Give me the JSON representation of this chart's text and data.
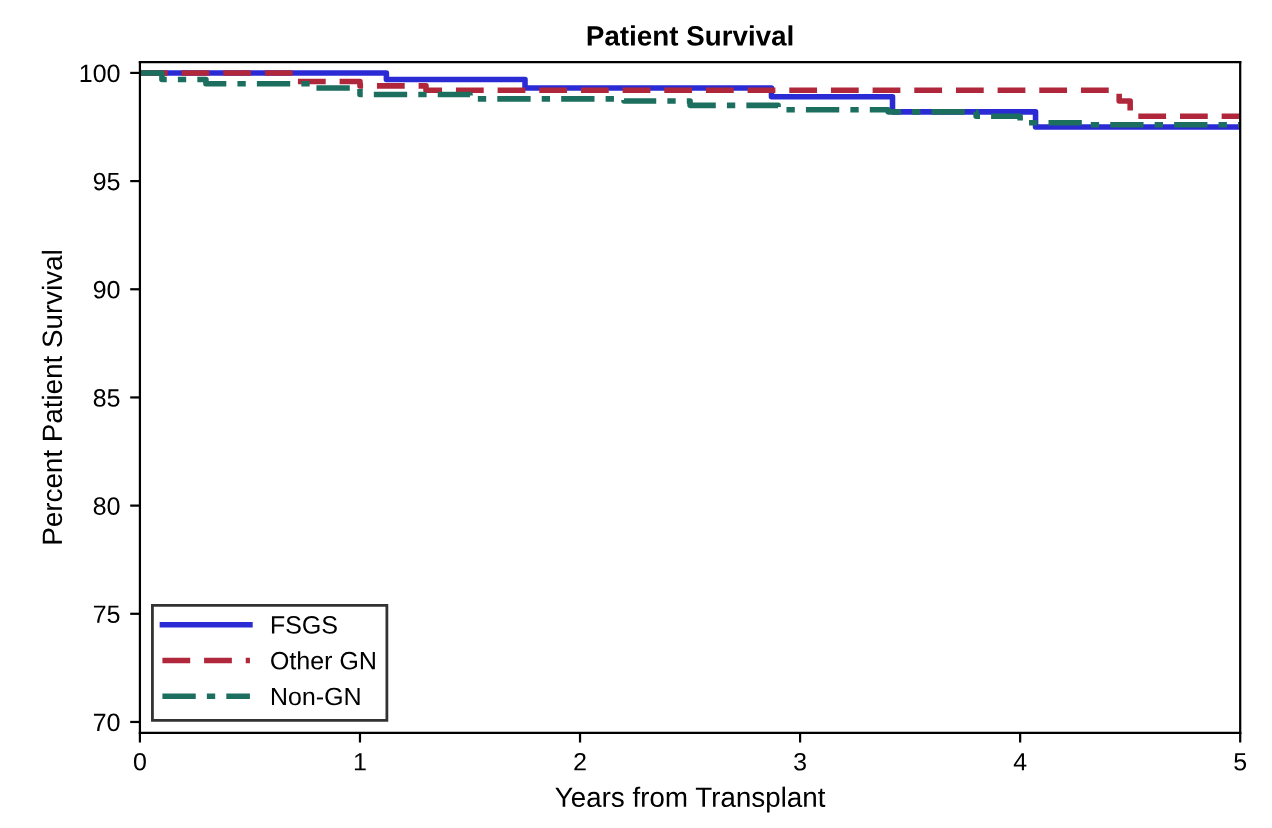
{
  "chart_data": {
    "type": "step",
    "title": "Patient Survival",
    "xlabel": "Years from Transplant",
    "ylabel": "Percent Patient Survival",
    "xlim": [
      0,
      5
    ],
    "xticks": [
      0,
      1,
      2,
      3,
      4,
      5
    ],
    "ylim": [
      69.5,
      100.5
    ],
    "yticks": [
      70,
      75,
      80,
      85,
      90,
      95,
      100
    ],
    "grid": false,
    "legend": "bottom left",
    "series": [
      {
        "name": "FSGS",
        "color": "#2b2bd6",
        "line_style": "solid",
        "x": [
          0,
          1.12,
          1.75,
          2.87,
          3.42,
          4.07,
          5
        ],
        "values": [
          100,
          99.7,
          99.3,
          98.9,
          98.2,
          97.5,
          97.5
        ]
      },
      {
        "name": "Other GN",
        "color": "#b0263a",
        "line_style": "dashed",
        "x": [
          0,
          0.7,
          1.0,
          1.3,
          4.45,
          4.5,
          5
        ],
        "values": [
          100,
          99.6,
          99.4,
          99.2,
          98.7,
          98.0,
          98.0
        ]
      },
      {
        "name": "Non-GN",
        "color": "#1c6e5e",
        "line_style": "dashdot",
        "x": [
          0,
          0.1,
          0.3,
          0.8,
          1.0,
          1.5,
          2.2,
          2.5,
          2.9,
          3.4,
          3.8,
          4.0,
          4.3,
          5
        ],
        "values": [
          100,
          99.7,
          99.5,
          99.3,
          99.0,
          98.8,
          98.7,
          98.5,
          98.3,
          98.2,
          98.0,
          97.7,
          97.6,
          97.6
        ]
      }
    ]
  }
}
